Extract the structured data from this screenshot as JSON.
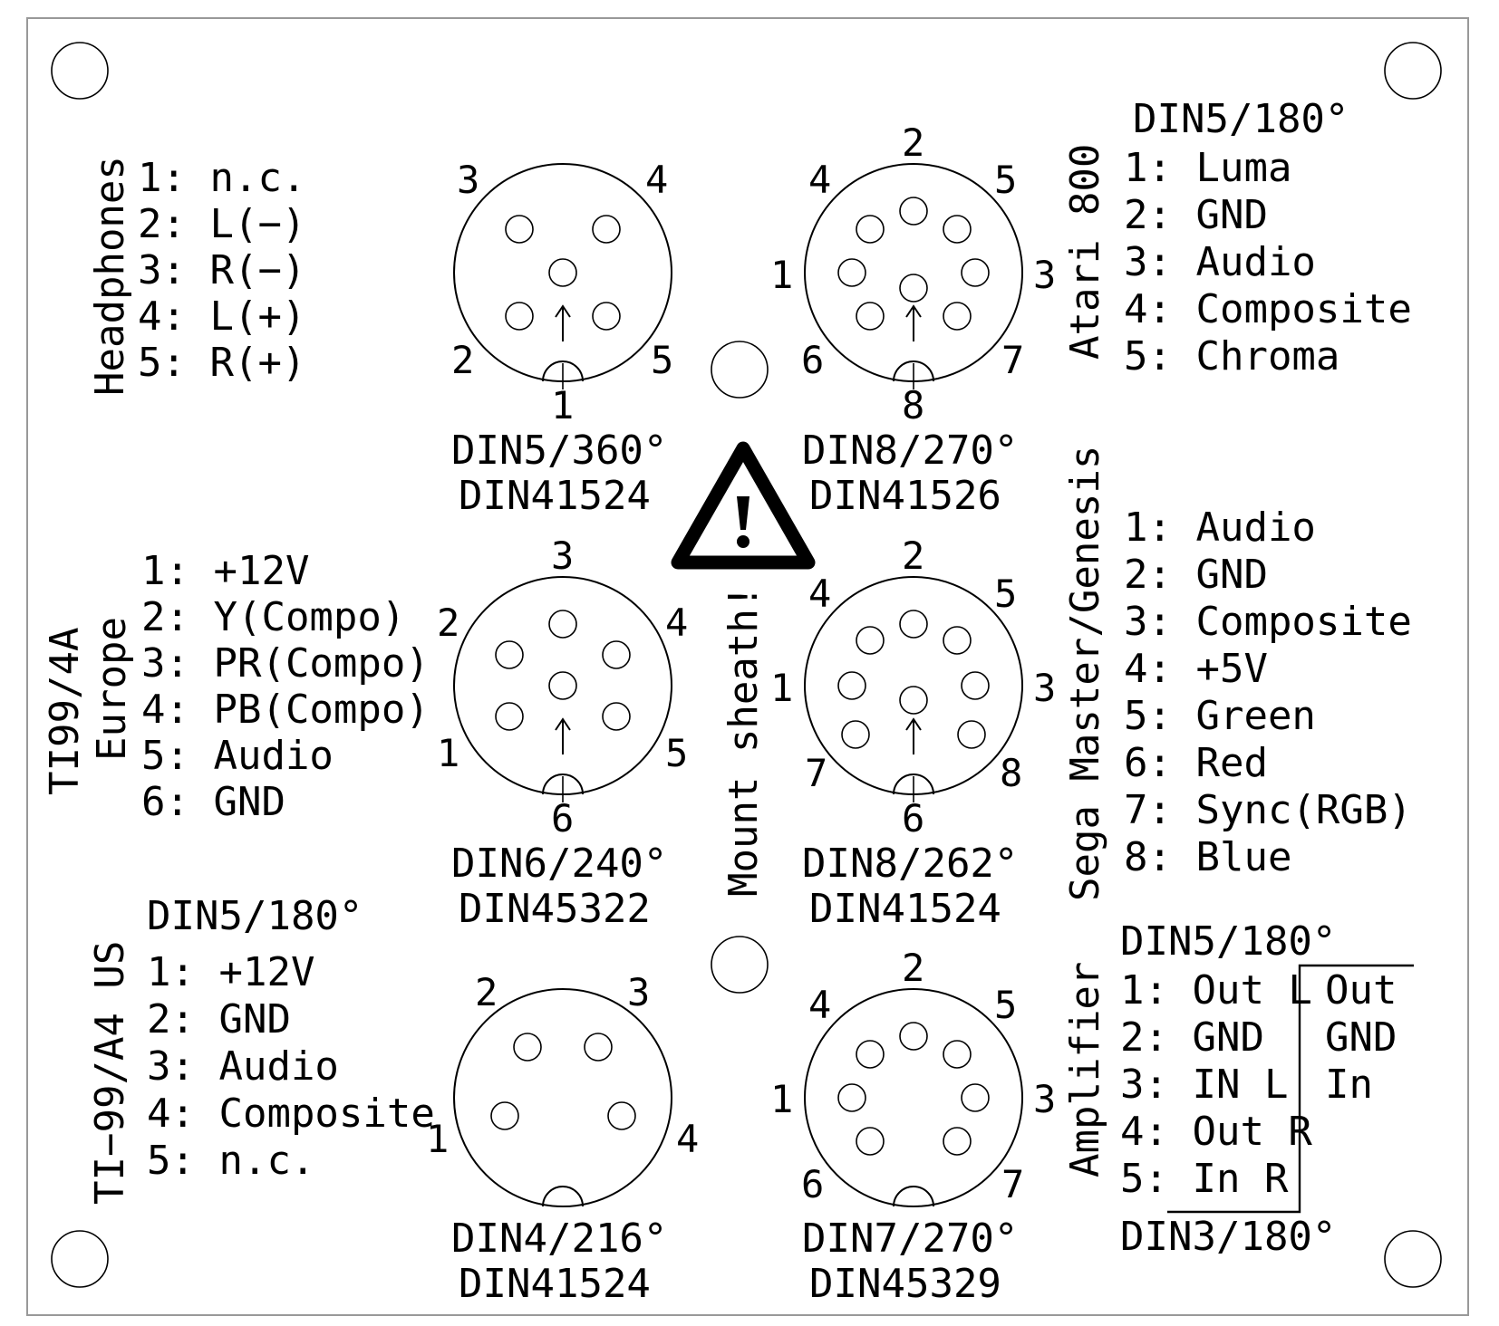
{
  "warning": {
    "icon": "warning-triangle-icon",
    "text": "Mount sheath!"
  },
  "headphones": {
    "title": "Headphones",
    "pins": [
      "1: n.c.",
      "2: L(−)",
      "3: R(−)",
      "4: L(+)",
      "5: R(+)"
    ]
  },
  "atari": {
    "title": "Atari 800",
    "connector": "DIN5/180°",
    "pins": [
      "1: Luma",
      "2: GND",
      "3: Audio",
      "4: Composite",
      "5: Chroma"
    ]
  },
  "ti_europe": {
    "title_line1": "TI99/4A",
    "title_line2": "Europe",
    "pins": [
      "1:  +12V",
      "2:  Y(Compo)",
      "3:  PR(Compo)",
      "4:  PB(Compo)",
      "5:  Audio",
      "6:  GND"
    ]
  },
  "sega": {
    "title": "Sega Master/Genesis",
    "pins": [
      "1: Audio",
      "2: GND",
      "3: Composite",
      "4: +5V",
      "5: Green",
      "6: Red",
      "7: Sync(RGB)",
      "8: Blue"
    ]
  },
  "ti_us": {
    "title": "TI−99/A4 US",
    "connector": "DIN5/180°",
    "pins": [
      "1: +12V",
      "2: GND",
      "3: Audio",
      "4: Composite",
      "5: n.c."
    ]
  },
  "amplifier": {
    "title": "Amplifier",
    "connector_top": "DIN5/180°",
    "connector_bottom": "DIN3/180°",
    "pins": [
      "1: Out L",
      "2: GND",
      "3: IN L",
      "4: Out R",
      "5: In R"
    ],
    "din3_pins": [
      "Out",
      "GND",
      "In"
    ]
  },
  "connectors": {
    "c1": {
      "line1": "DIN5/360°",
      "line2": "DIN41524",
      "nums": [
        "3",
        "4",
        "2",
        "5",
        "1"
      ]
    },
    "c2": {
      "line1": "DIN8/270°",
      "line2": "DIN41526",
      "nums": [
        "2",
        "4",
        "5",
        "1",
        "3",
        "6",
        "7",
        "8"
      ]
    },
    "c3": {
      "line1": "DIN6/240°",
      "line2": "DIN45322",
      "nums": [
        "3",
        "2",
        "4",
        "1",
        "5",
        "6"
      ]
    },
    "c4": {
      "line1": "DIN8/262°",
      "line2": "DIN41524",
      "nums": [
        "2",
        "4",
        "5",
        "1",
        "3",
        "7",
        "8",
        "6"
      ]
    },
    "c5": {
      "line1": "DIN4/216°",
      "line2": "DIN41524",
      "nums": [
        "2",
        "3",
        "1",
        "4"
      ]
    },
    "c6": {
      "line1": "DIN7/270°",
      "line2": "DIN45329",
      "nums": [
        "2",
        "4",
        "5",
        "1",
        "3",
        "6",
        "7"
      ]
    }
  }
}
